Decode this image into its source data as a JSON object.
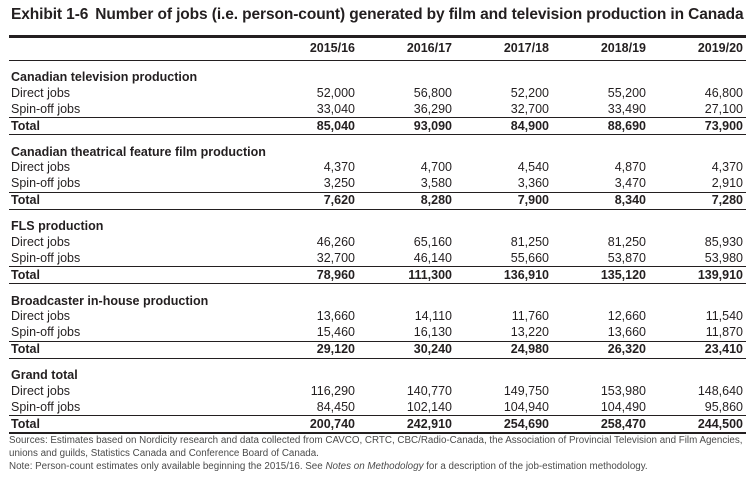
{
  "title": {
    "number": "Exhibit 1-6",
    "text": "Number of jobs (i.e. person-count) generated by film and television production in Canada"
  },
  "columns": [
    "2015/16",
    "2016/17",
    "2017/18",
    "2018/19",
    "2019/20"
  ],
  "sections": [
    {
      "name": "Canadian television production",
      "rows": [
        {
          "label": "Direct jobs",
          "values": [
            "52,000",
            "56,800",
            "52,200",
            "55,200",
            "46,800"
          ]
        },
        {
          "label": "Spin-off jobs",
          "values": [
            "33,040",
            "36,290",
            "32,700",
            "33,490",
            "27,100"
          ]
        },
        {
          "label": "Total",
          "values": [
            "85,040",
            "93,090",
            "84,900",
            "88,690",
            "73,900"
          ]
        }
      ]
    },
    {
      "name": "Canadian theatrical feature film production",
      "rows": [
        {
          "label": "Direct jobs",
          "values": [
            "4,370",
            "4,700",
            "4,540",
            "4,870",
            "4,370"
          ]
        },
        {
          "label": "Spin-off jobs",
          "values": [
            "3,250",
            "3,580",
            "3,360",
            "3,470",
            "2,910"
          ]
        },
        {
          "label": "Total",
          "values": [
            "7,620",
            "8,280",
            "7,900",
            "8,340",
            "7,280"
          ]
        }
      ]
    },
    {
      "name": "FLS production",
      "rows": [
        {
          "label": "Direct jobs",
          "values": [
            "46,260",
            "65,160",
            "81,250",
            "81,250",
            "85,930"
          ]
        },
        {
          "label": "Spin-off jobs",
          "values": [
            "32,700",
            "46,140",
            "55,660",
            "53,870",
            "53,980"
          ]
        },
        {
          "label": "Total",
          "values": [
            "78,960",
            "111,300",
            "136,910",
            "135,120",
            "139,910"
          ]
        }
      ]
    },
    {
      "name": "Broadcaster in-house production",
      "rows": [
        {
          "label": "Direct jobs",
          "values": [
            "13,660",
            "14,110",
            "11,760",
            "12,660",
            "11,540"
          ]
        },
        {
          "label": "Spin-off jobs",
          "values": [
            "15,460",
            "16,130",
            "13,220",
            "13,660",
            "11,870"
          ]
        },
        {
          "label": "Total",
          "values": [
            "29,120",
            "30,240",
            "24,980",
            "26,320",
            "23,410"
          ]
        }
      ]
    },
    {
      "name": "Grand total",
      "rows": [
        {
          "label": "Direct jobs",
          "values": [
            "116,290",
            "140,770",
            "149,750",
            "153,980",
            "148,640"
          ]
        },
        {
          "label": "Spin-off jobs",
          "values": [
            "84,450",
            "102,140",
            "104,940",
            "104,490",
            "95,860"
          ]
        },
        {
          "label": "Total",
          "values": [
            "200,740",
            "242,910",
            "254,690",
            "258,470",
            "244,500"
          ]
        }
      ]
    }
  ],
  "notes": {
    "sources": "Sources: Estimates based on Nordicity research and data collected from CAVCO, CRTC, CBC/Radio-Canada, the Association of Provincial Television and Film Agencies, unions and guilds, Statistics Canada and Conference Board of Canada.",
    "note_prefix": "Note: Person-count estimates only available beginning the 2015/16. See ",
    "note_italic": "Notes on Methodology",
    "note_suffix": " for a description of the job-estimation methodology."
  }
}
